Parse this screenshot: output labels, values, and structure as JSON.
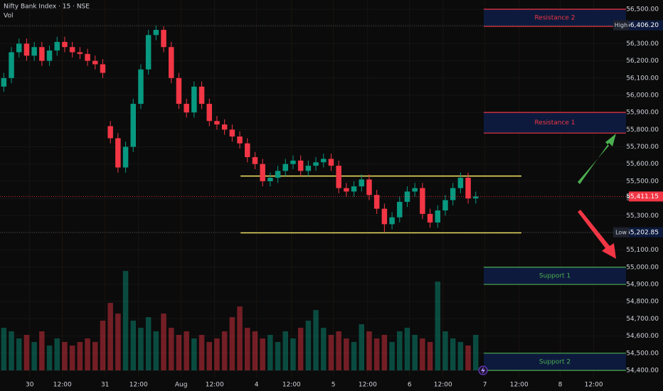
{
  "chart_data": {
    "type": "candlestick",
    "title": "Nifty Bank Index · 15 · NSE",
    "volume_title": "Vol",
    "x": [
      -3,
      -2,
      -1,
      0,
      1,
      2,
      3,
      4,
      5,
      6,
      7,
      8,
      9,
      10,
      11,
      12,
      13,
      14,
      15,
      16,
      17,
      18,
      19,
      20,
      21,
      22,
      23,
      24,
      25,
      26,
      27,
      28,
      29,
      30,
      31,
      32,
      33,
      34,
      35,
      36,
      37,
      38,
      39,
      40,
      41,
      42,
      43,
      44,
      45,
      46,
      47,
      48,
      49,
      50,
      51,
      52,
      53,
      54,
      55,
      56,
      57,
      58,
      59
    ],
    "open": [
      56050,
      56100,
      56250,
      56300,
      56230,
      56280,
      56200,
      56260,
      56310,
      56280,
      56250,
      56240,
      56200,
      56180,
      55820,
      55750,
      55580,
      55700,
      55950,
      56150,
      56350,
      56380,
      56280,
      56100,
      55950,
      55900,
      56050,
      55950,
      55850,
      55830,
      55800,
      55760,
      55720,
      55640,
      55600,
      55500,
      55520,
      55560,
      55600,
      55620,
      55560,
      55590,
      55610,
      55630,
      55590,
      55460,
      55440,
      55470,
      55510,
      55420,
      55340,
      55250,
      55290,
      55380,
      55440,
      55460,
      55310,
      55260,
      55330,
      55390,
      55460,
      55520,
      55400
    ],
    "high": [
      56130,
      56280,
      56330,
      56330,
      56310,
      56310,
      56290,
      56340,
      56340,
      56310,
      56280,
      56270,
      56230,
      56210,
      55850,
      55780,
      55730,
      55980,
      56180,
      56380,
      56406.2,
      56400,
      56310,
      56130,
      55980,
      56080,
      56080,
      55980,
      55880,
      55860,
      55830,
      55790,
      55750,
      55670,
      55630,
      55550,
      55590,
      55630,
      55650,
      55650,
      55620,
      55640,
      55660,
      55660,
      55620,
      55490,
      55500,
      55540,
      55540,
      55450,
      55370,
      55320,
      55410,
      55470,
      55490,
      55490,
      55340,
      55360,
      55420,
      55490,
      55550,
      55550,
      55440
    ],
    "low": [
      56020,
      56070,
      56220,
      56200,
      56200,
      56170,
      56170,
      56230,
      56250,
      56220,
      56210,
      56170,
      56150,
      56100,
      55720,
      55550,
      55550,
      55670,
      55920,
      56120,
      56320,
      56250,
      56070,
      55920,
      55870,
      55870,
      55920,
      55820,
      55800,
      55770,
      55730,
      55690,
      55610,
      55570,
      55470,
      55470,
      55490,
      55530,
      55570,
      55530,
      55530,
      55560,
      55580,
      55560,
      55430,
      55410,
      55410,
      55440,
      55390,
      55310,
      55202.85,
      55220,
      55260,
      55350,
      55410,
      55280,
      55230,
      55230,
      55300,
      55360,
      55430,
      55370,
      55370
    ],
    "close": [
      56100,
      56250,
      56300,
      56230,
      56280,
      56200,
      56260,
      56310,
      56280,
      56250,
      56240,
      56200,
      56180,
      56130,
      55750,
      55580,
      55700,
      55950,
      56150,
      56350,
      56380,
      56280,
      56100,
      55950,
      55900,
      56050,
      55950,
      55850,
      55830,
      55800,
      55760,
      55720,
      55640,
      55600,
      55500,
      55520,
      55560,
      55600,
      55620,
      55560,
      55590,
      55610,
      55630,
      55590,
      55460,
      55440,
      55470,
      55510,
      55420,
      55340,
      55250,
      55290,
      55380,
      55440,
      55460,
      55310,
      55260,
      55330,
      55390,
      55460,
      55520,
      55400,
      55411.15
    ],
    "volume": [
      60,
      55,
      45,
      50,
      40,
      55,
      35,
      45,
      40,
      35,
      40,
      45,
      40,
      70,
      95,
      80,
      140,
      70,
      60,
      75,
      55,
      80,
      60,
      50,
      55,
      45,
      50,
      40,
      45,
      55,
      75,
      90,
      60,
      55,
      45,
      50,
      40,
      55,
      45,
      60,
      70,
      85,
      60,
      50,
      55,
      45,
      40,
      65,
      55,
      45,
      50,
      40,
      55,
      60,
      50,
      45,
      40,
      125,
      55,
      45,
      40,
      35,
      50
    ],
    "volume_lim": [
      0,
      300
    ],
    "up_color": "#089981",
    "down_color": "#f23645",
    "xlim": [
      -3.5,
      78.74
    ],
    "xticks": [
      {
        "value": 0.4,
        "label": "30"
      },
      {
        "value": 4.7,
        "label": "12:00"
      },
      {
        "value": 10.3,
        "label": "31"
      },
      {
        "value": 14.7,
        "label": "12:00"
      },
      {
        "value": 20.3,
        "label": "Aug"
      },
      {
        "value": 24.7,
        "label": "12:00"
      },
      {
        "value": 30.2,
        "label": "4"
      },
      {
        "value": 34.8,
        "label": "12:00"
      },
      {
        "value": 40.3,
        "label": "5"
      },
      {
        "value": 44.8,
        "label": "12:00"
      },
      {
        "value": 50.3,
        "label": "6"
      },
      {
        "value": 54.7,
        "label": "12:00"
      },
      {
        "value": 60.2,
        "label": "7"
      },
      {
        "value": 64.7,
        "label": "12:00"
      },
      {
        "value": 70.1,
        "label": "8"
      },
      {
        "value": 74.5,
        "label": "12:00"
      }
    ],
    "ylim": [
      54400,
      56500
    ],
    "yticks": [
      {
        "value": 56500,
        "label": "56,500.00"
      },
      {
        "value": 56400,
        "label": "56,400.00"
      },
      {
        "value": 56300,
        "label": "56,300.00"
      },
      {
        "value": 56200,
        "label": "56,200.00"
      },
      {
        "value": 56100,
        "label": "56,100.00"
      },
      {
        "value": 56000,
        "label": "56,000.00"
      },
      {
        "value": 55900,
        "label": "55,900.00"
      },
      {
        "value": 55800,
        "label": "55,800.00"
      },
      {
        "value": 55700,
        "label": "55,700.00"
      },
      {
        "value": 55600,
        "label": "55,600.00"
      },
      {
        "value": 55500,
        "label": "55,500.00"
      },
      {
        "value": 55400,
        "label": "55,400.00"
      },
      {
        "value": 55300,
        "label": "55,300.00"
      },
      {
        "value": 55200,
        "label": "55,200.00"
      },
      {
        "value": 55100,
        "label": "55,100.00"
      },
      {
        "value": 55000,
        "label": "55,000.00"
      },
      {
        "value": 54900,
        "label": "54,900.00"
      },
      {
        "value": 54800,
        "label": "54,800.00"
      },
      {
        "value": 54700,
        "label": "54,700.00"
      },
      {
        "value": 54600,
        "label": "54,600.00"
      },
      {
        "value": 54500,
        "label": "54,500.00"
      },
      {
        "value": 54400,
        "label": "54,400.00"
      }
    ],
    "grid": true,
    "markers": [
      {
        "label": "High",
        "value": 56406.2,
        "value_label": "56,406.20",
        "color": "#0d1a3d"
      },
      {
        "value": 55411.15,
        "value_label": "55,411.15",
        "color": "#f23645"
      },
      {
        "label": "Low",
        "value": 55202.85,
        "value_label": "55,202.85",
        "color": "#0d1a3d"
      }
    ],
    "zones": [
      {
        "label": "Resistance 2",
        "top": 56500,
        "bottom": 56400,
        "x_start": 60.05,
        "color": "#f23645"
      },
      {
        "label": "Resistance 1",
        "top": 55900,
        "bottom": 55780,
        "x_start": 60.05,
        "color": "#f23645"
      },
      {
        "label": "Support 1",
        "top": 55000,
        "bottom": 54900,
        "x_start": 60.05,
        "color": "#4caf50"
      },
      {
        "label": "Support 2",
        "top": 54500,
        "bottom": 54400,
        "x_start": 60.05,
        "color": "#4caf50"
      }
    ],
    "levels": [
      {
        "value": 55530,
        "x_start": 28.1,
        "x_end": 65.0,
        "color": "#f5e663"
      },
      {
        "value": 55200,
        "x_start": 28.1,
        "x_end": 65.0,
        "color": "#f5e663"
      }
    ]
  }
}
